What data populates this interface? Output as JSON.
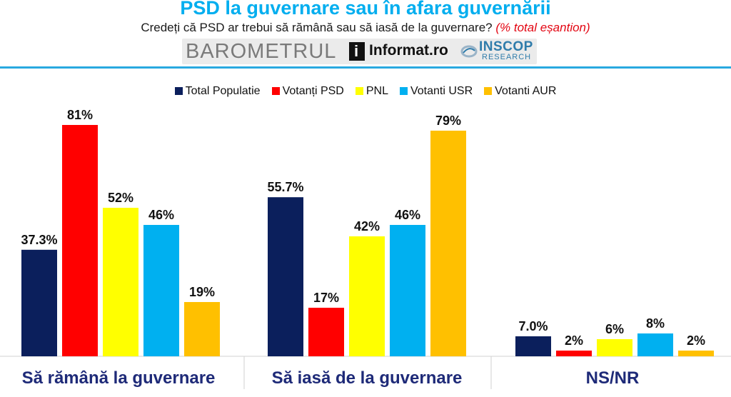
{
  "chart_data": {
    "type": "bar",
    "title": "PSD la guvernare sau în afara guvernării",
    "subtitle": "Credeți că PSD ar trebui să rămână sau să iasă de la guvernare?",
    "subtitle_note": "(% total eșantion)",
    "categories": [
      "Să rămână la guvernare",
      "Să iasă de la guvernare",
      "NS/NR"
    ],
    "series": [
      {
        "name": "Total Populatie",
        "color": "#0b1f5c",
        "values": [
          37.3,
          55.7,
          7.0
        ],
        "labels": [
          "37.3%",
          "55.7%",
          "7.0%"
        ]
      },
      {
        "name": "Votanți PSD",
        "color": "#ff0000",
        "values": [
          81,
          17,
          2
        ],
        "labels": [
          "81%",
          "17%",
          "2%"
        ]
      },
      {
        "name": "PNL",
        "color": "#ffff00",
        "values": [
          52,
          42,
          6
        ],
        "labels": [
          "52%",
          "42%",
          "6%"
        ]
      },
      {
        "name": "Votanti USR",
        "color": "#00b0f0",
        "values": [
          46,
          46,
          8
        ],
        "labels": [
          "46%",
          "46%",
          "8%"
        ]
      },
      {
        "name": "Votanti AUR",
        "color": "#ffc000",
        "values": [
          19,
          79,
          2
        ],
        "labels": [
          "19%",
          "79%",
          "2%"
        ]
      }
    ],
    "ylim": [
      0,
      100
    ],
    "xlabel": "",
    "ylabel": "",
    "legend_position": "top",
    "grid": false
  },
  "logos": {
    "barometrul": "BAROMETRUL",
    "informat_i": "i",
    "informat": "Informat.ro",
    "inscop": "INSCOP",
    "research": "RESEARCH"
  },
  "colors": {
    "title": "#00aeef",
    "category_text": "#1e2a78",
    "rule": "#29a9e0",
    "note": "#e30613"
  }
}
